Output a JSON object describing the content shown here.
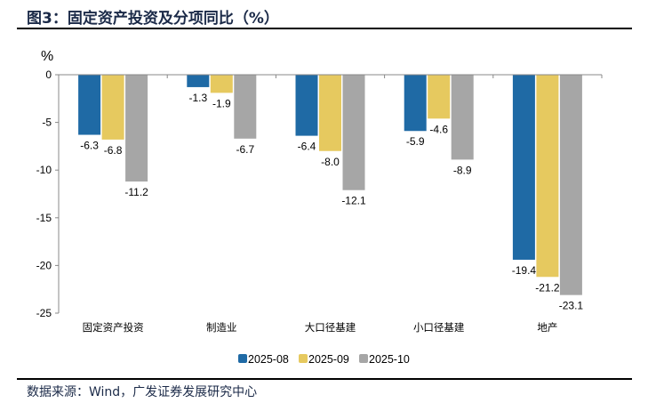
{
  "title": "图3：固定资产投资及分项同比（%）",
  "source": "数据来源：Wind，广发证券发展研究中心",
  "chart_data": {
    "type": "bar",
    "ylabel": "%",
    "ylim": [
      -25,
      0
    ],
    "yticks": [
      0,
      -5,
      -10,
      -15,
      -20,
      -25
    ],
    "categories": [
      "固定资产投资",
      "制造业",
      "大口径基建",
      "小口径基建",
      "地产"
    ],
    "series": [
      {
        "name": "2025-08",
        "color": "#1f6aa5",
        "values": [
          -6.3,
          -1.3,
          -6.4,
          -5.9,
          -19.4
        ]
      },
      {
        "name": "2025-09",
        "color": "#e6c95f",
        "values": [
          -6.8,
          -1.9,
          -8.0,
          -4.6,
          -21.2
        ]
      },
      {
        "name": "2025-10",
        "color": "#a6a6a6",
        "values": [
          -11.2,
          -6.7,
          -12.1,
          -8.9,
          -23.1
        ]
      }
    ],
    "grid": false,
    "legend": "bottom"
  }
}
